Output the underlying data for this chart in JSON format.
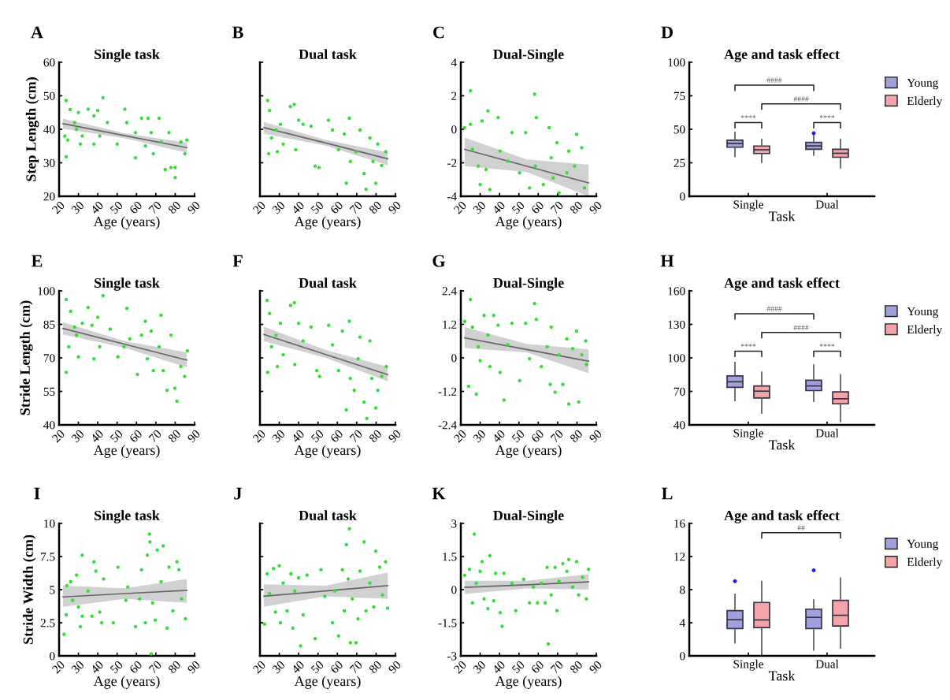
{
  "chart_data": [
    {
      "type": "scatter",
      "title": "Single task",
      "xlabel": "Age (years)",
      "ylabel": "Step Length (cm)",
      "annotations": [
        "A"
      ],
      "marker": "circle",
      "xlim": [
        20,
        90
      ],
      "xticks": [
        20,
        30,
        40,
        50,
        60,
        70,
        80,
        90
      ],
      "ylim": [
        20,
        60
      ],
      "yticks": [
        20,
        30,
        40,
        50,
        60
      ],
      "series": [
        {
          "type": "scatter",
          "color": "#33dd33",
          "x": [
            23.7,
            23.7,
            25.7,
            23,
            24.5,
            28,
            29,
            30,
            31,
            32,
            35,
            38,
            38,
            40,
            42.7,
            41,
            45,
            50,
            54,
            55,
            59.5,
            59.5,
            62.6,
            64.6,
            66,
            67.6,
            68.7,
            71.7,
            72.7,
            74.8,
            76.8,
            77.8,
            80,
            80,
            83,
            85,
            86
          ],
          "values": [
            48.6,
            31.8,
            45.9,
            38,
            36.8,
            42,
            40,
            45,
            35.6,
            38,
            46,
            44,
            35.6,
            45.6,
            49.4,
            38,
            42,
            35.6,
            46,
            42,
            31.5,
            39,
            43.3,
            35,
            43.3,
            39,
            32.7,
            43.3,
            36.2,
            28,
            39,
            28.6,
            28.6,
            25.6,
            36.2,
            32.7,
            36.8
          ]
        },
        {
          "type": "line",
          "color": "#666666",
          "x": [
            22,
            54,
            86
          ],
          "marker": "none",
          "values": [
            41.7,
            38.1,
            34.5
          ],
          "lower": [
            40.2,
            37.3,
            33
          ],
          "upper": [
            43.2,
            38.8,
            36
          ]
        }
      ]
    },
    {
      "type": "scatter",
      "title": "Dual task",
      "xlabel": "Age (years)",
      "annotations": [
        "B"
      ],
      "marker": "circle",
      "tick_labels": "x",
      "xlim": [
        20,
        90
      ],
      "xticks": [
        20,
        30,
        40,
        50,
        60,
        70,
        80,
        90
      ],
      "ylim": [
        20,
        60
      ],
      "yticks": [
        20,
        30,
        40,
        50,
        60
      ],
      "series": [
        {
          "type": "scatter",
          "color": "#33dd33",
          "x": [
            24,
            25,
            24.5,
            26,
            28.3,
            29,
            30.6,
            32,
            35.7,
            37.7,
            38.5,
            40,
            42.3,
            46.4,
            48.5,
            50.5,
            55.4,
            57.5,
            60.6,
            63.6,
            64.6,
            66.2,
            66.7,
            69.7,
            71.7,
            73.8,
            74.8,
            76.8,
            78.4,
            79.8,
            80.9,
            82.9,
            85
          ],
          "values": [
            48.6,
            45.6,
            32.7,
            37.4,
            39.8,
            33.3,
            41.5,
            35.6,
            46.8,
            47.4,
            33.9,
            42.7,
            41.5,
            40.9,
            29,
            28.6,
            42.7,
            39.8,
            33.9,
            38.6,
            23.9,
            43.3,
            30.4,
            33.3,
            39.8,
            26.8,
            22.1,
            37.4,
            30.4,
            23.9,
            35.6,
            29.2,
            33.3
          ]
        },
        {
          "type": "line",
          "color": "#666666",
          "x": [
            22,
            54,
            86
          ],
          "marker": "none",
          "values": [
            40.5,
            35.9,
            31.2
          ],
          "lower": [
            38.7,
            35.1,
            29.3
          ],
          "upper": [
            42.2,
            36.8,
            33.1
          ]
        }
      ]
    },
    {
      "type": "scatter",
      "title": "Dual-Single",
      "xlabel": "Age (years)",
      "annotations": [
        "C"
      ],
      "marker": "circle",
      "xlim": [
        20,
        90
      ],
      "xticks": [
        20,
        30,
        40,
        50,
        60,
        70,
        80,
        90
      ],
      "ylim": [
        -4,
        4
      ],
      "yticks": [
        -4,
        -2,
        0,
        2,
        4
      ],
      "series": [
        {
          "type": "scatter",
          "color": "#33dd33",
          "x": [
            25,
            22,
            25,
            26,
            29,
            30,
            31,
            34,
            33,
            35,
            39.3,
            40.3,
            44.3,
            46.4,
            50.4,
            53.5,
            55.5,
            58.1,
            59,
            58.5,
            62.6,
            65.6,
            66.7,
            67.7,
            69.7,
            70.7,
            74.8,
            75.8,
            79.8,
            78.8,
            82.5,
            83.9
          ],
          "values": [
            2.3,
            0.1,
            0.3,
            -1.2,
            -2.2,
            -3.3,
            0.5,
            1.1,
            -2.4,
            -3.6,
            0.7,
            -1.3,
            -1.9,
            -0.2,
            -2.6,
            -0.2,
            -3.5,
            2.1,
            0.7,
            -2.2,
            -3.3,
            0.1,
            -1.7,
            -2.9,
            -0.8,
            -3.8,
            -2.6,
            -1.3,
            -0.3,
            -2.2,
            -1.1,
            -3.5
          ]
        },
        {
          "type": "line",
          "color": "#666666",
          "x": [
            22,
            54,
            86
          ],
          "marker": "none",
          "values": [
            -1.2,
            -2.2,
            -3.2
          ],
          "lower": [
            -2.2,
            -2.55,
            -4
          ],
          "upper": [
            -0.5,
            -1.8,
            -2.1
          ]
        }
      ]
    },
    {
      "type": "box",
      "title": "Age and task effect",
      "xlabel": "Task",
      "annotations": [
        "D",
        "####",
        "####",
        "****",
        "****"
      ],
      "legend": "top right",
      "categories": [
        "Single",
        "Dual"
      ],
      "ylim": [
        0,
        100
      ],
      "yticks": [
        0,
        25,
        50,
        75,
        100
      ],
      "series": [
        {
          "name": "Young",
          "color": "#a0a0dc",
          "boxes": [
            {
              "low": 29.8,
              "q1": 36.6,
              "median": 39.4,
              "q3": 41.8,
              "high": 47.8
            },
            {
              "low": 30.6,
              "q1": 35.1,
              "median": 37.6,
              "q3": 40.2,
              "high": 46,
              "outliers": [
                47.1
              ]
            }
          ]
        },
        {
          "name": "Elderly",
          "color": "#f4a3a8",
          "boxes": [
            {
              "low": 25.3,
              "q1": 31.9,
              "median": 34.7,
              "q3": 37.5,
              "high": 42.4
            },
            {
              "low": 21.2,
              "q1": 29.1,
              "median": 32.1,
              "q3": 35.1,
              "high": 42.4
            }
          ]
        }
      ]
    },
    {
      "type": "scatter",
      "title": "Single task",
      "xlabel": "Age (years)",
      "ylabel": "Stride Length (cm)",
      "annotations": [
        "E"
      ],
      "marker": "circle",
      "xlim": [
        20,
        90
      ],
      "xticks": [
        20,
        30,
        40,
        50,
        60,
        70,
        80,
        90
      ],
      "ylim": [
        40,
        100
      ],
      "yticks": [
        40,
        55,
        70,
        85,
        100
      ],
      "series": [
        {
          "type": "scatter",
          "color": "#33dd33",
          "x": [
            23.7,
            23.7,
            26,
            25,
            28,
            29,
            30,
            32,
            35,
            37,
            38,
            40,
            42.7,
            41,
            46.4,
            50.4,
            53.5,
            55,
            56.5,
            60.5,
            62.6,
            64.6,
            65.6,
            67.6,
            68.7,
            71.7,
            72.7,
            73.8,
            75.8,
            77.8,
            79.8,
            80.9,
            82.9,
            84.9,
            86.3
          ],
          "values": [
            96.1,
            63.5,
            90.8,
            75,
            83.8,
            80.2,
            70.5,
            85.5,
            92.6,
            84.6,
            69.6,
            88.2,
            97.9,
            75,
            82.9,
            70.5,
            75,
            92.2,
            78.5,
            62.6,
            80.2,
            86.4,
            69.6,
            82,
            64.3,
            75,
            89.1,
            64.3,
            55.5,
            80.2,
            56.4,
            50.6,
            66.1,
            61.7,
            73.2
          ]
        },
        {
          "type": "line",
          "color": "#666666",
          "x": [
            22,
            54,
            86
          ],
          "marker": "none",
          "values": [
            83.2,
            76.1,
            69
          ],
          "lower": [
            80.5,
            74.5,
            65.8
          ],
          "upper": [
            86,
            77.5,
            72.5
          ]
        }
      ]
    },
    {
      "type": "scatter",
      "title": "Dual task",
      "xlabel": "Age (years)",
      "annotations": [
        "F"
      ],
      "marker": "circle",
      "tick_labels": "x",
      "xlim": [
        20,
        90
      ],
      "xticks": [
        20,
        30,
        40,
        50,
        60,
        70,
        80,
        90
      ],
      "ylim": [
        40,
        100
      ],
      "yticks": [
        40,
        55,
        70,
        85,
        100
      ],
      "series": [
        {
          "type": "scatter",
          "color": "#33dd33",
          "x": [
            23.7,
            25,
            24,
            26,
            28.3,
            29,
            30.6,
            32,
            35.8,
            37.8,
            38,
            40,
            42.3,
            46.4,
            49.4,
            50.8,
            55.5,
            57.5,
            60.6,
            62.6,
            64.6,
            66.2,
            66.7,
            68.7,
            70.7,
            71.7,
            73.8,
            75.2,
            76.8,
            77.8,
            79.8,
            80.9,
            82.9,
            85.3
          ],
          "values": [
            95.8,
            89.9,
            63.5,
            75,
            80.2,
            66.1,
            85.5,
            71.4,
            93.5,
            94.7,
            67,
            85.5,
            77.6,
            83.8,
            64.3,
            61.7,
            84.6,
            75.8,
            64.3,
            82,
            46.7,
            86.4,
            60.8,
            55.5,
            69.6,
            79.3,
            50.2,
            42.8,
            77.6,
            60.8,
            47.6,
            55.5,
            61.7,
            66.1
          ]
        },
        {
          "type": "line",
          "color": "#666666",
          "x": [
            22,
            54,
            86
          ],
          "marker": "none",
          "values": [
            80.5,
            71.5,
            62.5
          ],
          "lower": [
            77.5,
            70,
            59.5
          ],
          "upper": [
            84,
            73.5,
            66
          ]
        }
      ]
    },
    {
      "type": "scatter",
      "title": "Dual-Single",
      "xlabel": "Age (years)",
      "annotations": [
        "G"
      ],
      "marker": "circle",
      "xlim": [
        20,
        90
      ],
      "xticks": [
        20,
        30,
        40,
        50,
        60,
        70,
        80,
        90
      ],
      "ylim": [
        -2.4,
        2.4
      ],
      "yticks": [
        -2.4,
        -1.2,
        0,
        1.2,
        2.4
      ],
      "series": [
        {
          "type": "scatter",
          "color": "#33dd33",
          "x": [
            22,
            25,
            24,
            26,
            28,
            29,
            30,
            32,
            34,
            35,
            37,
            39.3,
            40.3,
            42.3,
            44.3,
            46.4,
            50.4,
            53.5,
            55.5,
            58.1,
            59,
            61.6,
            64.6,
            66.2,
            66.7,
            68.7,
            70.7,
            72.7,
            74.8,
            75.8,
            77.8,
            79.8,
            80.9,
            82.5,
            84.5,
            84.9
          ],
          "values": [
            1.31,
            2.09,
            -1.02,
            1.1,
            -1.3,
            0.4,
            -0.1,
            1.52,
            0.82,
            -0.31,
            1.52,
            1.17,
            -0.52,
            -1.51,
            0.47,
            1.24,
            -0.81,
            1.24,
            -0.03,
            1.95,
            1.38,
            -0.31,
            0.4,
            -0.95,
            1.1,
            -1.23,
            0.11,
            -0.95,
            0.68,
            -1.65,
            0.33,
            0.96,
            -1.58,
            0.11,
            0.61,
            -0.24
          ]
        },
        {
          "type": "line",
          "color": "#666666",
          "x": [
            22,
            54,
            86
          ],
          "marker": "none",
          "values": [
            0.72,
            0.3,
            -0.12
          ],
          "lower": [
            0.35,
            0.2,
            -0.55
          ],
          "upper": [
            1.1,
            0.5,
            0.3
          ]
        }
      ]
    },
    {
      "type": "box",
      "title": "Age and task effect",
      "xlabel": "Task",
      "annotations": [
        "H",
        "####",
        "####",
        "****",
        "****"
      ],
      "legend": "top right",
      "categories": [
        "Single",
        "Dual"
      ],
      "ylim": [
        40,
        160
      ],
      "yticks": [
        40,
        70,
        100,
        130,
        160
      ],
      "series": [
        {
          "name": "Young",
          "color": "#a0a0dc",
          "boxes": [
            {
              "low": 61.8,
              "q1": 73.6,
              "median": 78.6,
              "q3": 83.9,
              "high": 95.9
            },
            {
              "low": 61.1,
              "q1": 70.7,
              "median": 74.9,
              "q3": 80,
              "high": 93.6
            }
          ]
        },
        {
          "name": "Elderly",
          "color": "#f4a3a8",
          "boxes": [
            {
              "low": 50.5,
              "q1": 64.1,
              "median": 70.2,
              "q3": 74.8,
              "high": 87.3
            },
            {
              "low": 43,
              "q1": 58.9,
              "median": 63.4,
              "q3": 69.5,
              "high": 85
            }
          ]
        }
      ]
    },
    {
      "type": "scatter",
      "title": "Single task",
      "xlabel": "Age (years)",
      "ylabel": "Stride Width (cm)",
      "annotations": [
        "I"
      ],
      "marker": "circle",
      "xlim": [
        20,
        90
      ],
      "xticks": [
        20,
        30,
        40,
        50,
        60,
        70,
        80,
        90
      ],
      "ylim": [
        0,
        10
      ],
      "yticks": [
        0,
        2.5,
        5,
        7.5,
        10
      ],
      "series": [
        {
          "type": "scatter",
          "color": "#33dd33",
          "x": [
            22.6,
            23.7,
            24,
            26,
            27,
            29,
            30,
            31,
            32,
            32,
            35,
            37,
            38,
            39,
            41,
            42,
            43,
            48,
            50.4,
            54.5,
            55.5,
            59.5,
            61.6,
            62.6,
            64.6,
            65.6,
            66.7,
            67,
            67.6,
            68.3,
            69.7,
            70.7,
            72.7,
            73.8,
            75.8,
            76.8,
            78.8,
            80.9,
            81.9,
            83.3,
            85.3
          ],
          "values": [
            1.63,
            3.1,
            5.3,
            5.6,
            4.2,
            6.1,
            3.7,
            2.2,
            7.6,
            3,
            4.9,
            3,
            7.1,
            6.4,
            3.3,
            2.5,
            5.8,
            2.5,
            6.7,
            4.2,
            5.2,
            2.2,
            4.3,
            6.5,
            2.5,
            7.6,
            9.2,
            8.6,
            0.15,
            4,
            2.7,
            8,
            5.6,
            8.3,
            2.1,
            6.7,
            3.4,
            7.1,
            6.5,
            4.3,
            2.8
          ]
        },
        {
          "type": "line",
          "color": "#666666",
          "x": [
            22,
            54,
            86
          ],
          "marker": "none",
          "values": [
            4.45,
            4.7,
            4.95
          ],
          "lower": [
            3.7,
            4.3,
            4
          ],
          "upper": [
            5.3,
            5.1,
            5.8
          ]
        }
      ]
    },
    {
      "type": "scatter",
      "title": "Dual task",
      "xlabel": "Age (years)",
      "annotations": [
        "J"
      ],
      "marker": "circle",
      "tick_labels": "x",
      "xlim": [
        20,
        90
      ],
      "xticks": [
        20,
        30,
        40,
        50,
        60,
        70,
        80,
        90
      ],
      "ylim": [
        0,
        10
      ],
      "yticks": [
        0,
        2.5,
        5,
        7.5,
        10
      ],
      "series": [
        {
          "type": "scatter",
          "color": "#33dd33",
          "x": [
            22.4,
            23.7,
            25,
            27,
            28,
            30,
            30.6,
            32,
            34,
            36,
            37,
            38,
            40,
            41,
            42.3,
            44.3,
            48.5,
            51.5,
            53.5,
            57.5,
            58.6,
            60.6,
            62.6,
            63.6,
            64.6,
            65.6,
            66.2,
            66.7,
            67.7,
            69.7,
            70.7,
            71.7,
            73.8,
            74.8,
            76.8,
            78.8,
            79.8,
            81.9,
            83.3,
            84.9,
            86
          ],
          "values": [
            2.4,
            6.2,
            4.7,
            6.6,
            3.3,
            6.8,
            2.5,
            5.5,
            3.4,
            6.2,
            2.1,
            4.9,
            5.9,
            0.75,
            3.1,
            6.1,
            1.3,
            6.5,
            4.5,
            2.5,
            4.9,
            1.5,
            6.5,
            3.4,
            8.4,
            5.8,
            9.6,
            1,
            4.3,
            1,
            2.8,
            6.4,
            8.6,
            3.4,
            5.5,
            3.7,
            7.9,
            6.7,
            4.6,
            7.1,
            3.6
          ]
        },
        {
          "type": "line",
          "color": "#666666",
          "x": [
            22,
            54,
            86
          ],
          "marker": "none",
          "values": [
            4.5,
            4.9,
            5.3
          ],
          "lower": [
            3.7,
            4.5,
            4.3
          ],
          "upper": [
            5.4,
            5.3,
            6.3
          ]
        }
      ]
    },
    {
      "type": "scatter",
      "title": "Dual-Single",
      "xlabel": "Age (years)",
      "annotations": [
        "K"
      ],
      "marker": "circle",
      "xlim": [
        20,
        90
      ],
      "xticks": [
        20,
        30,
        40,
        50,
        60,
        70,
        80,
        90
      ],
      "ylim": [
        -3,
        3
      ],
      "yticks": [
        -3,
        -1.5,
        0,
        1.5,
        3
      ],
      "series": [
        {
          "type": "scatter",
          "color": "#33dd33",
          "x": [
            22,
            24.5,
            26,
            27,
            28,
            30,
            31,
            32,
            34,
            35,
            37,
            38,
            40.3,
            41.3,
            42.3,
            46.4,
            48.4,
            52.5,
            55.5,
            57.5,
            59.6,
            61.6,
            63.6,
            64.6,
            65.2,
            66.7,
            68.7,
            69.7,
            70.7,
            72.7,
            74.8,
            75.8,
            77.8,
            79.8,
            80.9,
            82.9,
            84.9,
            86
          ],
          "values": [
            0.65,
            0.92,
            -0.6,
            2.52,
            0.29,
            0.83,
            1.27,
            -0.42,
            -0.86,
            1.54,
            -0.51,
            0.74,
            -1.04,
            -1.66,
            0.74,
            0.29,
            -0.95,
            0.47,
            -0.6,
            0.12,
            -0.6,
            0.29,
            -0.6,
            1.01,
            -2.46,
            -0.24,
            1.01,
            -0.95,
            0.38,
            1.18,
            0.83,
            1.36,
            0.12,
            1.27,
            -0.24,
            0.56,
            -0.42,
            0.92
          ]
        },
        {
          "type": "line",
          "color": "#666666",
          "x": [
            22,
            54,
            86
          ],
          "marker": "none",
          "values": [
            0.1,
            0.22,
            0.35
          ],
          "lower": [
            -0.2,
            0.05,
            0
          ],
          "upper": [
            0.4,
            0.4,
            0.7
          ]
        }
      ]
    },
    {
      "type": "box",
      "title": "Age and task effect",
      "xlabel": "Task",
      "annotations": [
        "L",
        "##"
      ],
      "legend": "top right",
      "categories": [
        "Single",
        "Dual"
      ],
      "ylim": [
        0,
        16
      ],
      "yticks": [
        0,
        4,
        8,
        12,
        16
      ],
      "series": [
        {
          "name": "Young",
          "color": "#a0a0dc",
          "boxes": [
            {
              "low": 1.55,
              "q1": 3.29,
              "median": 4.37,
              "q3": 5.46,
              "high": 7.44,
              "outliers": [
                9.02
              ]
            },
            {
              "low": 0.71,
              "q1": 3.29,
              "median": 4.65,
              "q3": 5.64,
              "high": 6.76,
              "outliers": [
                10.33
              ]
            }
          ]
        },
        {
          "name": "Elderly",
          "color": "#f4a3a8",
          "boxes": [
            {
              "low": 0,
              "q1": 3.41,
              "median": 4.34,
              "q3": 6.45,
              "high": 8.99
            },
            {
              "low": 0.93,
              "q1": 3.6,
              "median": 4.9,
              "q3": 6.7,
              "high": 9.4
            }
          ]
        }
      ]
    }
  ]
}
